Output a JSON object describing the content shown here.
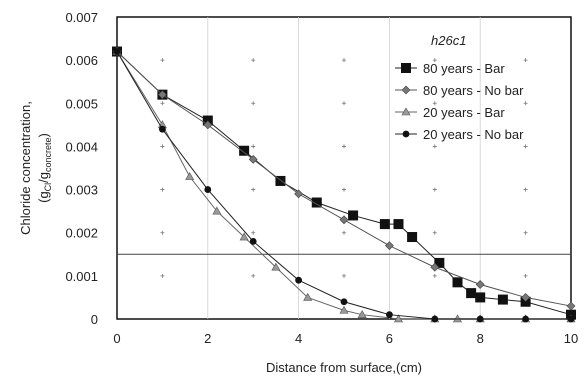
{
  "chart_data": {
    "type": "line",
    "xlabel": "Distance from surface,(cm)",
    "ylabel_line1": "Chloride concentration,",
    "ylabel_line2_main": "(g",
    "ylabel_sub1": "Cl",
    "ylabel_mid": "/g",
    "ylabel_sub2": "concrete",
    "ylabel_close": ")",
    "xlim": [
      0,
      10
    ],
    "ylim": [
      0,
      0.007
    ],
    "x_ticks": [
      "0",
      "2",
      "4",
      "6",
      "8",
      "10"
    ],
    "x_tick_values": [
      0,
      2,
      4,
      6,
      8,
      10
    ],
    "y_ticks": [
      "0",
      "0.001",
      "0.002",
      "0.003",
      "0.004",
      "0.005",
      "0.006",
      "0.007"
    ],
    "y_tick_values": [
      0,
      0.001,
      0.002,
      0.003,
      0.004,
      0.005,
      0.006,
      0.007
    ],
    "threshold_line": 0.0015,
    "legend_title": "h26c1",
    "legend_position": "top-right",
    "series": [
      {
        "name": "80 years - Bar",
        "marker": "square",
        "x": [
          0,
          1,
          2,
          2.8,
          3.6,
          4.4,
          5.2,
          5.9,
          6.2,
          6.5,
          7.1,
          7.5,
          7.8,
          8,
          8.5,
          9,
          10
        ],
        "y": [
          0.0062,
          0.0052,
          0.0046,
          0.0039,
          0.0032,
          0.0027,
          0.0024,
          0.0022,
          0.0022,
          0.0019,
          0.0013,
          0.00085,
          0.0006,
          0.0005,
          0.00045,
          0.0004,
          0.0001
        ]
      },
      {
        "name": "80 years - No bar",
        "marker": "diamond",
        "x": [
          0,
          1,
          2,
          3,
          4,
          5,
          6,
          7,
          8,
          9,
          10
        ],
        "y": [
          0.0062,
          0.0052,
          0.0045,
          0.0037,
          0.0029,
          0.0023,
          0.0017,
          0.0012,
          0.0008,
          0.0005,
          0.0003
        ]
      },
      {
        "name": "20 years - Bar",
        "marker": "triangle",
        "x": [
          0,
          1,
          1.6,
          2.2,
          2.8,
          3.5,
          4.2,
          5,
          5.4,
          6.2,
          7,
          7.5,
          8,
          9,
          10
        ],
        "y": [
          0.0062,
          0.0045,
          0.0033,
          0.0025,
          0.0019,
          0.0012,
          0.0005,
          0.0002,
          0.0001,
          0,
          0,
          0,
          0,
          0,
          0
        ]
      },
      {
        "name": "20 years - No bar",
        "marker": "circle",
        "x": [
          0,
          1,
          2,
          3,
          4,
          5,
          6,
          7,
          8,
          9,
          10
        ],
        "y": [
          0.0062,
          0.0044,
          0.003,
          0.0018,
          0.0009,
          0.0004,
          0.0001,
          0,
          0,
          0,
          0
        ]
      }
    ]
  }
}
